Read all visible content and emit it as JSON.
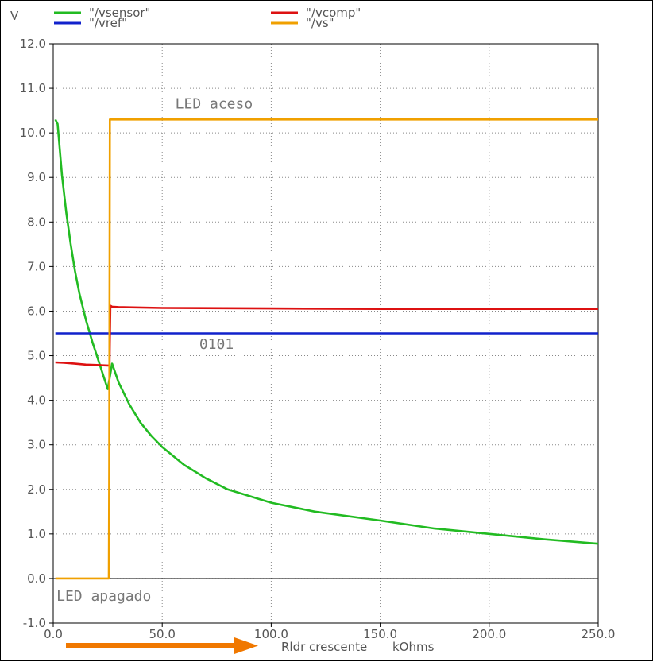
{
  "chart_data": {
    "type": "line",
    "ylabel": "V",
    "xlabel_text": "Rldr crescente",
    "xunit": "kOhms",
    "xlim": [
      0,
      250
    ],
    "ylim": [
      -1,
      12
    ],
    "x_ticks": [
      "0.0",
      "50.0",
      "100.0",
      "150.0",
      "200.0",
      "250.0"
    ],
    "x_tick_values": [
      0,
      50,
      100,
      150,
      200,
      250
    ],
    "y_ticks": [
      "-1.0",
      "0.0",
      "1.0",
      "2.0",
      "3.0",
      "4.0",
      "5.0",
      "6.0",
      "7.0",
      "8.0",
      "9.0",
      "10.0",
      "11.0",
      "12.0"
    ],
    "y_tick_values": [
      -1,
      0,
      1,
      2,
      3,
      4,
      5,
      6,
      7,
      8,
      9,
      10,
      11,
      12
    ],
    "grid": true,
    "legend_placement": "top",
    "series": [
      {
        "name": "\"/vsensor\"",
        "color": "#22bb22",
        "x": [
          1,
          2,
          4,
          6,
          8,
          10,
          12,
          15,
          18,
          20,
          22,
          25,
          27,
          30,
          35,
          40,
          45,
          50,
          60,
          70,
          80,
          100,
          120,
          150,
          175,
          200,
          225,
          250
        ],
        "y": [
          10.3,
          10.2,
          9.05,
          8.2,
          7.5,
          6.9,
          6.4,
          5.8,
          5.3,
          5.0,
          4.7,
          4.25,
          4.82,
          4.4,
          3.9,
          3.5,
          3.2,
          2.95,
          2.55,
          2.25,
          2.0,
          1.7,
          1.5,
          1.3,
          1.12,
          1.0,
          0.88,
          0.78
        ]
      },
      {
        "name": "\"/vref\"",
        "color": "#1122cc",
        "x": [
          1,
          250
        ],
        "y": [
          5.5,
          5.5
        ]
      },
      {
        "name": "\"/vcomp\"",
        "color": "#dd1111",
        "x": [
          1,
          5,
          10,
          15,
          20,
          25,
          25.8,
          26.2,
          27,
          30,
          50,
          100,
          150,
          200,
          250
        ],
        "y": [
          4.85,
          4.84,
          4.82,
          4.8,
          4.79,
          4.78,
          4.78,
          6.12,
          6.1,
          6.09,
          6.07,
          6.06,
          6.05,
          6.05,
          6.05
        ]
      },
      {
        "name": "\"/vs\"",
        "color": "#f0a000",
        "x": [
          1,
          25.5,
          25.7,
          26.0,
          27,
          250
        ],
        "y": [
          0.0,
          0.0,
          2.5,
          10.3,
          10.3,
          10.3
        ]
      }
    ],
    "annotations": [
      {
        "text": "LED aceso",
        "x": 56,
        "y": 10.55
      },
      {
        "text": "0101",
        "x": 67,
        "y": 5.15
      },
      {
        "text": "LED apagado",
        "x": 1.5,
        "y": -0.5
      }
    ]
  },
  "arrow_color": "#f07800"
}
